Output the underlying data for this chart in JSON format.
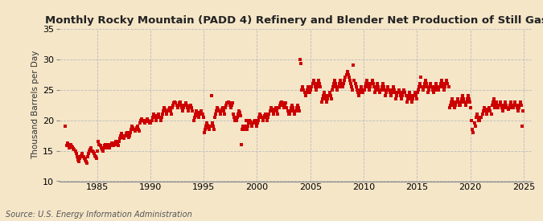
{
  "title": "Monthly Rocky Mountain (PADD 4) Refinery and Blender Net Production of Still Gas",
  "ylabel": "Thousand Barrels per Day",
  "source": "Source: U.S. Energy Information Administration",
  "background_color": "#f5e6c8",
  "marker_color": "#cc0000",
  "xlim": [
    1981.5,
    2025.8
  ],
  "ylim": [
    10,
    35
  ],
  "yticks": [
    10,
    15,
    20,
    25,
    30,
    35
  ],
  "xticks": [
    1985,
    1990,
    1995,
    2000,
    2005,
    2010,
    2015,
    2020,
    2025
  ],
  "grid_color": "#bbbbbb",
  "marker_size": 3.2,
  "data": {
    "1982": [
      19.0,
      15.8,
      16.2,
      16.0,
      15.5,
      15.8,
      16.0,
      15.7,
      15.6,
      15.4,
      15.2,
      15.0
    ],
    "1983": [
      14.5,
      14.0,
      13.5,
      13.2,
      13.8,
      14.0,
      14.2,
      14.5,
      14.0,
      13.8,
      13.5,
      13.2
    ],
    "1984": [
      13.0,
      14.0,
      14.5,
      15.0,
      15.2,
      15.5,
      15.0,
      14.8,
      14.5,
      14.2,
      14.0,
      13.8
    ],
    "1985": [
      15.0,
      16.5,
      16.0,
      15.8,
      15.5,
      15.2,
      15.0,
      15.5,
      15.8,
      16.0,
      15.8,
      15.5
    ],
    "1986": [
      16.0,
      15.5,
      15.8,
      16.0,
      16.2,
      16.0,
      15.8,
      16.0,
      16.2,
      16.5,
      16.0,
      15.8
    ],
    "1987": [
      16.5,
      17.0,
      17.5,
      17.8,
      17.5,
      17.2,
      17.0,
      17.5,
      17.8,
      18.0,
      17.5,
      17.2
    ],
    "1988": [
      17.5,
      18.0,
      18.5,
      19.0,
      18.8,
      18.5,
      18.2,
      18.5,
      18.8,
      19.0,
      18.5,
      18.2
    ],
    "1989": [
      19.5,
      20.0,
      20.2,
      20.0,
      19.8,
      19.5,
      19.8,
      20.0,
      20.2,
      20.0,
      19.8,
      19.5
    ],
    "1990": [
      19.5,
      20.0,
      20.5,
      21.0,
      20.8,
      20.5,
      20.0,
      20.5,
      20.8,
      21.0,
      20.5,
      20.0
    ],
    "1991": [
      20.5,
      21.0,
      21.5,
      22.0,
      21.8,
      21.5,
      21.0,
      21.5,
      21.8,
      22.0,
      21.5,
      21.0
    ],
    "1992": [
      22.0,
      22.5,
      22.8,
      23.0,
      22.8,
      22.5,
      22.0,
      22.5,
      22.8,
      23.0,
      22.5,
      22.0
    ],
    "1993": [
      21.5,
      22.0,
      22.5,
      22.8,
      22.5,
      22.0,
      21.5,
      22.0,
      22.3,
      22.5,
      22.0,
      21.5
    ],
    "1994": [
      20.0,
      20.5,
      21.0,
      21.5,
      21.2,
      20.8,
      20.5,
      21.0,
      21.3,
      21.5,
      21.0,
      20.5
    ],
    "1995": [
      18.0,
      18.5,
      19.0,
      19.5,
      19.2,
      18.8,
      18.5,
      19.0,
      24.0,
      19.5,
      19.0,
      18.5
    ],
    "1996": [
      20.5,
      21.0,
      21.5,
      22.0,
      21.8,
      21.5,
      21.0,
      21.5,
      21.8,
      22.0,
      21.5,
      21.0
    ],
    "1997": [
      22.0,
      22.5,
      22.8,
      23.0,
      22.8,
      22.5,
      22.0,
      22.5,
      22.8,
      21.0,
      20.5,
      20.0
    ],
    "1998": [
      20.0,
      20.5,
      21.0,
      21.5,
      21.2,
      20.8,
      16.0,
      18.5,
      19.0,
      18.5,
      19.0,
      20.0
    ],
    "1999": [
      18.5,
      19.0,
      19.5,
      20.0,
      19.8,
      19.5,
      19.0,
      19.5,
      19.8,
      20.0,
      19.5,
      19.0
    ],
    "2000": [
      19.5,
      20.0,
      20.5,
      21.0,
      20.8,
      20.5,
      20.0,
      20.5,
      20.8,
      21.0,
      20.5,
      20.0
    ],
    "2001": [
      20.5,
      21.0,
      21.5,
      22.0,
      21.8,
      21.5,
      21.0,
      21.5,
      21.8,
      22.0,
      21.5,
      21.0
    ],
    "2002": [
      22.0,
      22.5,
      22.8,
      23.0,
      22.8,
      22.5,
      22.0,
      22.5,
      22.8,
      22.0,
      21.5,
      21.0
    ],
    "2003": [
      21.0,
      21.5,
      22.0,
      22.5,
      22.0,
      21.5,
      21.0,
      21.5,
      22.0,
      22.5,
      22.0,
      21.5
    ],
    "2004": [
      30.0,
      29.3,
      25.0,
      25.5,
      25.0,
      24.5,
      24.0,
      24.5,
      25.0,
      25.5,
      25.0,
      24.5
    ],
    "2005": [
      25.0,
      25.5,
      26.0,
      26.5,
      26.0,
      25.5,
      25.0,
      25.5,
      26.0,
      26.5,
      26.0,
      25.5
    ],
    "2006": [
      23.0,
      23.5,
      24.0,
      24.5,
      24.0,
      23.5,
      23.0,
      23.5,
      24.0,
      24.5,
      24.0,
      23.5
    ],
    "2007": [
      25.0,
      25.5,
      26.0,
      26.5,
      26.0,
      25.5,
      25.0,
      25.5,
      26.0,
      26.5,
      26.0,
      25.5
    ],
    "2008": [
      25.5,
      26.0,
      26.5,
      27.0,
      27.5,
      28.0,
      27.5,
      27.0,
      26.5,
      26.0,
      25.5,
      25.0
    ],
    "2009": [
      29.0,
      26.5,
      26.0,
      25.5,
      25.0,
      24.5,
      24.0,
      24.5,
      25.0,
      25.5,
      25.0,
      24.5
    ],
    "2010": [
      25.0,
      25.5,
      26.0,
      26.5,
      26.0,
      25.5,
      25.0,
      25.5,
      26.0,
      26.5,
      26.0,
      25.5
    ],
    "2011": [
      24.5,
      25.0,
      25.5,
      26.0,
      25.5,
      25.0,
      24.5,
      25.0,
      25.5,
      26.0,
      25.5,
      25.0
    ],
    "2012": [
      24.0,
      24.5,
      25.0,
      25.5,
      25.0,
      24.5,
      24.0,
      24.5,
      25.0,
      25.5,
      25.0,
      24.5
    ],
    "2013": [
      23.5,
      24.0,
      24.5,
      25.0,
      24.5,
      24.0,
      23.5,
      24.0,
      24.5,
      25.0,
      24.5,
      24.0
    ],
    "2014": [
      23.0,
      23.5,
      24.0,
      24.5,
      24.0,
      23.5,
      23.0,
      23.5,
      24.0,
      24.5,
      24.0,
      23.5
    ],
    "2015": [
      24.5,
      25.0,
      25.5,
      26.0,
      27.0,
      25.5,
      25.0,
      25.5,
      26.0,
      26.5,
      26.0,
      25.5
    ],
    "2016": [
      24.5,
      25.0,
      25.5,
      26.0,
      25.5,
      25.0,
      24.5,
      25.0,
      25.5,
      26.0,
      25.5,
      25.0
    ],
    "2017": [
      25.0,
      25.5,
      26.0,
      26.5,
      26.0,
      25.5,
      25.0,
      25.5,
      26.0,
      26.5,
      26.0,
      25.5
    ],
    "2018": [
      22.0,
      22.5,
      23.0,
      23.5,
      23.0,
      22.5,
      22.0,
      22.5,
      23.0,
      23.5,
      23.0,
      22.5
    ],
    "2019": [
      22.5,
      23.0,
      23.5,
      24.0,
      23.5,
      23.0,
      22.5,
      23.0,
      23.5,
      24.0,
      23.5,
      23.0
    ],
    "2020": [
      22.0,
      20.0,
      18.5,
      18.0,
      19.5,
      19.0,
      20.5,
      21.0,
      20.5,
      20.0,
      20.0,
      20.5
    ],
    "2021": [
      20.5,
      21.0,
      21.5,
      22.0,
      21.8,
      21.5,
      21.0,
      21.5,
      21.8,
      22.0,
      21.5,
      21.0
    ],
    "2022": [
      22.5,
      23.0,
      23.5,
      22.0,
      22.5,
      23.0,
      22.5,
      22.0,
      22.5,
      23.0,
      22.5,
      22.0
    ],
    "2023": [
      21.5,
      22.0,
      22.5,
      23.0,
      22.5,
      22.0,
      21.8,
      22.0,
      22.5,
      23.0,
      22.5,
      22.0
    ],
    "2024": [
      22.0,
      22.5,
      23.0,
      22.5,
      22.0,
      21.5,
      22.0,
      22.5,
      23.0,
      22.5,
      19.0,
      21.5
    ]
  }
}
